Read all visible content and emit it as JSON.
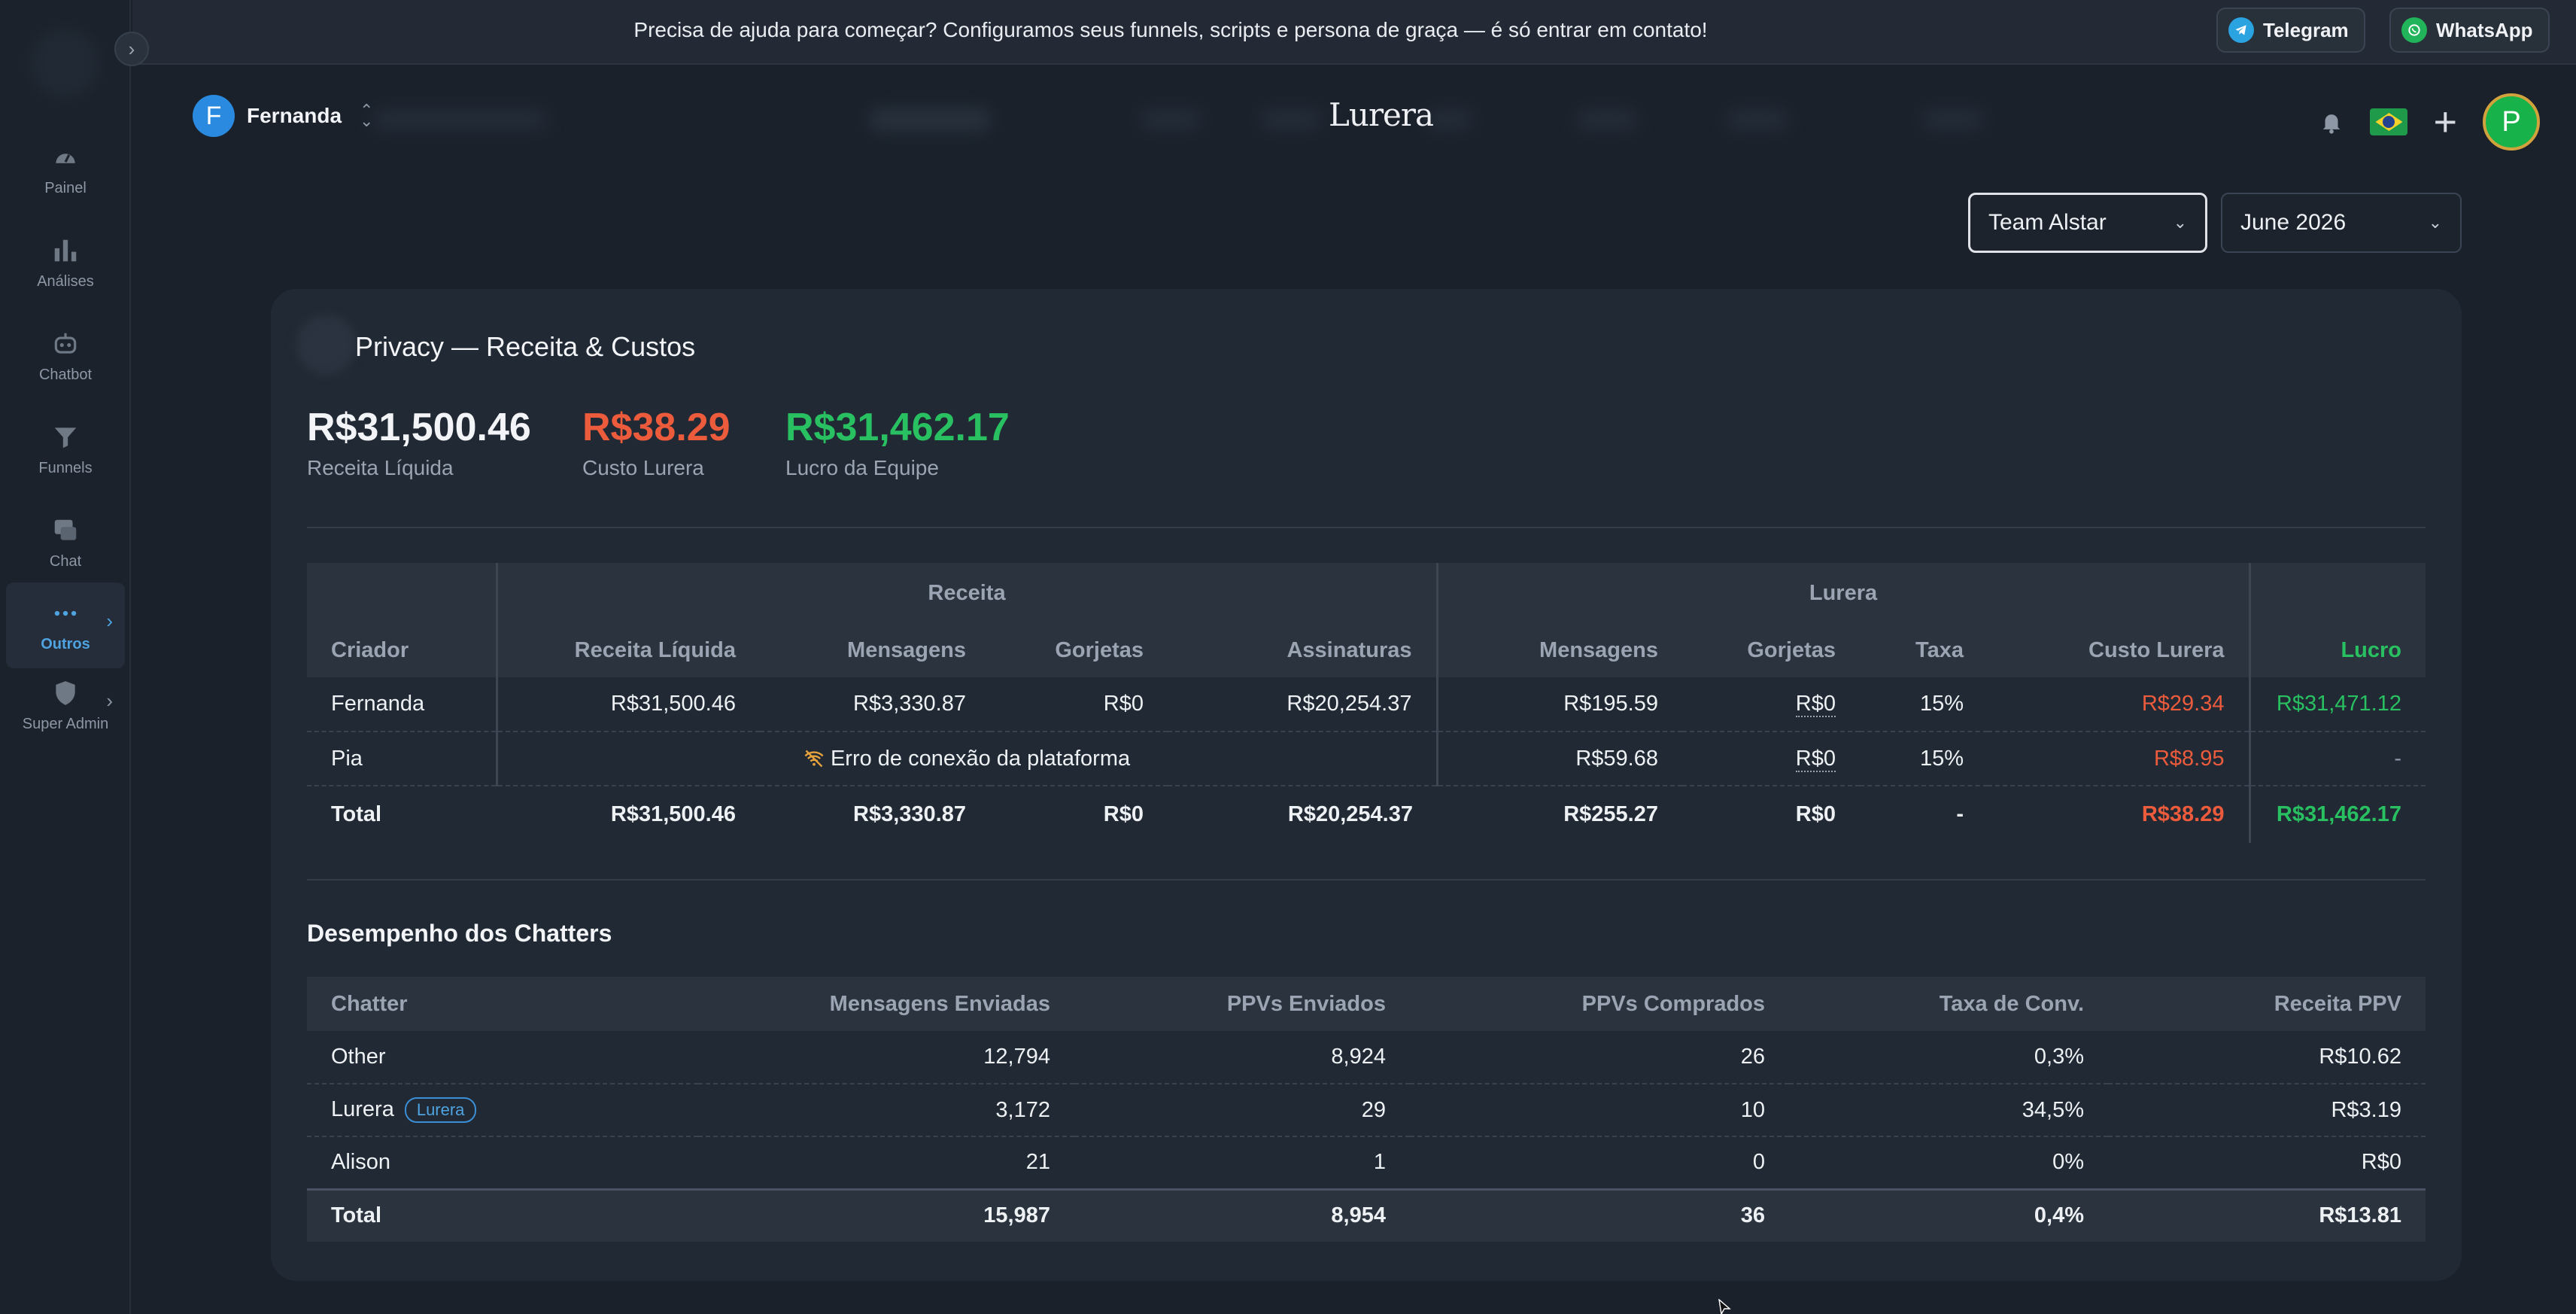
{
  "banner": {
    "text": "Precisa de ajuda para começar? Configuramos seus funnels, scripts e persona de graça — é só entrar em contato!",
    "telegram": "Telegram",
    "whatsapp": "WhatsApp"
  },
  "sidebar": {
    "items": [
      {
        "label": "Painel",
        "icon": "gauge-icon"
      },
      {
        "label": "Análises",
        "icon": "bar-chart-icon"
      },
      {
        "label": "Chatbot",
        "icon": "robot-icon"
      },
      {
        "label": "Funnels",
        "icon": "funnel-icon"
      },
      {
        "label": "Chat",
        "icon": "chat-icon"
      },
      {
        "label": "Outros",
        "icon": "more-dots-icon",
        "active": true
      },
      {
        "label": "Super Admin",
        "icon": "shield-icon"
      }
    ]
  },
  "header": {
    "user_initial": "F",
    "user_name": "Fernanda",
    "brand": "Lurera",
    "profile_initial": "P"
  },
  "filters": {
    "team": "Team Alstar",
    "month": "June 2026"
  },
  "card": {
    "title": "Privacy — Receita & Custos",
    "stats": [
      {
        "value": "R$31,500.46",
        "label": "Receita Líquida",
        "color": "#f2f4f7"
      },
      {
        "value": "R$38.29",
        "label": "Custo Lurera",
        "color": "#ec5b3c"
      },
      {
        "value": "R$31,462.17",
        "label": "Lucro da Equipe",
        "color": "#28c061"
      }
    ]
  },
  "revenue_table": {
    "group_receita": "Receita",
    "group_lurera": "Lurera",
    "headers": {
      "criador": "Criador",
      "receita_liquida": "Receita Líquida",
      "mensagens": "Mensagens",
      "gorjetas": "Gorjetas",
      "assinaturas": "Assinaturas",
      "l_mensagens": "Mensagens",
      "l_gorjetas": "Gorjetas",
      "taxa": "Taxa",
      "custo_lurera": "Custo Lurera",
      "lucro": "Lucro"
    },
    "rows": [
      {
        "criador": "Fernanda",
        "receita_liquida": "R$31,500.46",
        "mensagens": "R$3,330.87",
        "gorjetas": "R$0",
        "assinaturas": "R$20,254.37",
        "l_mensagens": "R$195.59",
        "l_gorjetas": "R$0",
        "taxa": "15%",
        "custo_lurera": "R$29.34",
        "lucro": "R$31,471.12"
      },
      {
        "criador": "Pia",
        "error": "Erro de conexão da plataforma",
        "l_mensagens": "R$59.68",
        "l_gorjetas": "R$0",
        "taxa": "15%",
        "custo_lurera": "R$8.95",
        "lucro": "-"
      }
    ],
    "total": {
      "label": "Total",
      "receita_liquida": "R$31,500.46",
      "mensagens": "R$3,330.87",
      "gorjetas": "R$0",
      "assinaturas": "R$20,254.37",
      "l_mensagens": "R$255.27",
      "l_gorjetas": "R$0",
      "taxa": "-",
      "custo_lurera": "R$38.29",
      "lucro": "R$31,462.17"
    }
  },
  "chatters": {
    "title": "Desempenho dos Chatters",
    "headers": [
      "Chatter",
      "Mensagens Enviadas",
      "PPVs Enviados",
      "PPVs Comprados",
      "Taxa de Conv.",
      "Receita PPV"
    ],
    "rows": [
      {
        "name": "Other",
        "badge": "",
        "msgs": "12,794",
        "ppv_sent": "8,924",
        "ppv_bought": "26",
        "conv": "0,3%",
        "revenue": "R$10.62"
      },
      {
        "name": "Lurera",
        "badge": "Lurera",
        "msgs": "3,172",
        "ppv_sent": "29",
        "ppv_bought": "10",
        "conv": "34,5%",
        "revenue": "R$3.19"
      },
      {
        "name": "Alison",
        "badge": "",
        "msgs": "21",
        "ppv_sent": "1",
        "ppv_bought": "0",
        "conv": "0%",
        "revenue": "R$0"
      }
    ],
    "total": {
      "label": "Total",
      "msgs": "15,987",
      "ppv_sent": "8,954",
      "ppv_bought": "36",
      "conv": "0,4%",
      "revenue": "R$13.81"
    }
  }
}
